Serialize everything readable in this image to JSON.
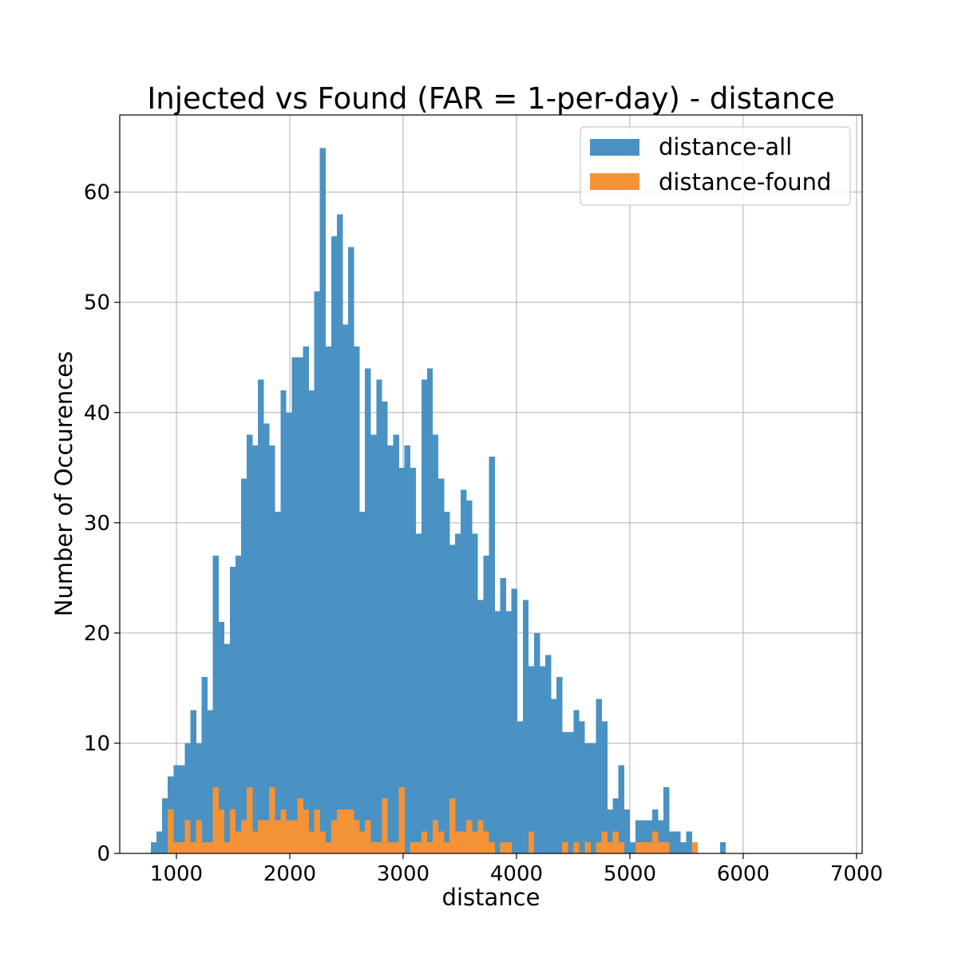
{
  "chart_data": {
    "type": "bar",
    "title": "Injected vs Found (FAR = 1-per-day) - distance",
    "xlabel": "distance",
    "ylabel": "Number of Occurences",
    "xlim": [
      500,
      7050
    ],
    "ylim": [
      0,
      67
    ],
    "xticks": [
      1000,
      2000,
      3000,
      4000,
      5000,
      6000,
      7000
    ],
    "yticks": [
      0,
      10,
      20,
      30,
      40,
      50,
      60
    ],
    "grid": true,
    "legend_position": "upper right",
    "bin_start": 775,
    "bin_width": 49.7,
    "series": [
      {
        "name": "distance-all",
        "color": "#4a92c3",
        "values": [
          1,
          2,
          5,
          7,
          8,
          8,
          10,
          13,
          10,
          16,
          13,
          27,
          21,
          19,
          26,
          27,
          34,
          38,
          37,
          43,
          39,
          37,
          31,
          42,
          40,
          45,
          45,
          46,
          42,
          51,
          64,
          46,
          56,
          58,
          48,
          55,
          46,
          31,
          44,
          38,
          43,
          41,
          37,
          38,
          35,
          37,
          35,
          29,
          43,
          44,
          38,
          34,
          31,
          28,
          29,
          33,
          32,
          29,
          23,
          27,
          36,
          22,
          25,
          22,
          24,
          12,
          23,
          17,
          20,
          17,
          18,
          14,
          16,
          11,
          11,
          13,
          12,
          10,
          10,
          14,
          12,
          4,
          5,
          8,
          4,
          1,
          3,
          3,
          3,
          4,
          3,
          6,
          2,
          2,
          1,
          2,
          0,
          0,
          0,
          0,
          0,
          1
        ]
      },
      {
        "name": "distance-found",
        "color": "#f39336",
        "values": [
          0,
          0,
          0,
          4,
          1,
          1,
          3,
          1,
          3,
          1,
          1,
          6,
          4,
          1,
          4,
          2,
          3,
          6,
          2,
          3,
          3,
          6,
          3,
          4,
          3,
          3,
          5,
          4,
          2,
          4,
          2,
          1,
          3,
          4,
          4,
          4,
          3,
          2,
          3,
          1,
          1,
          5,
          1,
          1,
          6,
          0,
          1,
          1,
          2,
          1,
          3,
          2,
          1,
          5,
          2,
          2,
          3,
          2,
          3,
          2,
          1,
          0,
          1,
          1,
          0,
          0,
          0,
          2,
          0,
          0,
          0,
          0,
          0,
          1,
          0,
          1,
          0,
          1,
          0,
          1,
          2,
          1,
          2,
          1,
          0,
          0,
          1,
          1,
          1,
          2,
          1,
          1,
          0,
          0,
          0,
          0,
          1,
          0,
          0,
          0,
          0,
          0
        ]
      }
    ]
  }
}
